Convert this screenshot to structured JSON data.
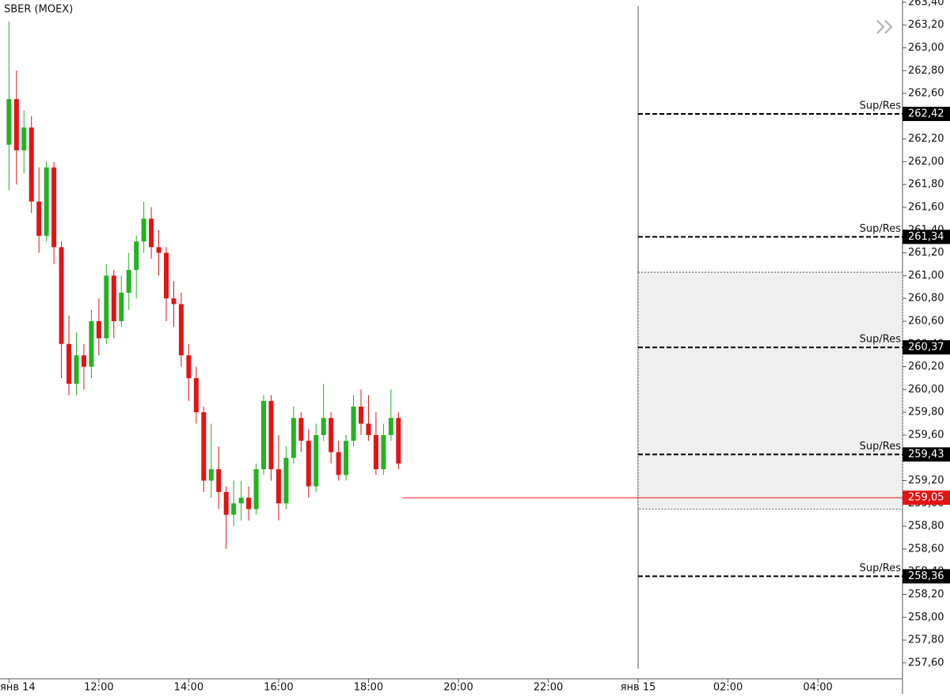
{
  "chart_data": {
    "type": "candlestick",
    "title": "SBER (MOEX)",
    "up_color": "#22b322",
    "down_color": "#e31414",
    "x": [
      600,
      610,
      620,
      630,
      640,
      650,
      660,
      670,
      680,
      690,
      700,
      710,
      720,
      730,
      740,
      750,
      760,
      770,
      780,
      790,
      800,
      810,
      820,
      830,
      840,
      850,
      860,
      870,
      880,
      890,
      900,
      910,
      920,
      930,
      940,
      950,
      960,
      970,
      980,
      990,
      1000,
      1010,
      1020,
      1030,
      1040,
      1050,
      1060,
      1070,
      1080,
      1090,
      1100,
      1110,
      1120
    ],
    "open": [
      262.15,
      262.55,
      262.1,
      262.3,
      261.65,
      261.35,
      261.95,
      261.25,
      260.4,
      260.05,
      260.3,
      260.2,
      260.6,
      260.45,
      261.0,
      260.6,
      260.85,
      261.05,
      261.3,
      261.5,
      261.25,
      261.2,
      260.8,
      260.75,
      260.3,
      260.1,
      259.8,
      259.2,
      259.3,
      259.1,
      258.9,
      259.0,
      259.05,
      258.95,
      259.3,
      259.9,
      259.3,
      259.0,
      259.4,
      259.75,
      259.55,
      259.15,
      259.6,
      259.75,
      259.45,
      259.25,
      259.55,
      259.85,
      259.7,
      259.6,
      259.3,
      259.6,
      259.75
    ],
    "high": [
      263.23,
      262.8,
      262.45,
      262.4,
      261.95,
      262.0,
      262.0,
      261.3,
      260.65,
      260.5,
      260.4,
      260.7,
      260.8,
      261.1,
      261.05,
      261.0,
      261.2,
      261.35,
      261.65,
      261.6,
      261.4,
      261.25,
      260.95,
      260.85,
      260.4,
      260.2,
      259.85,
      259.7,
      259.5,
      259.15,
      259.2,
      259.2,
      259.15,
      259.35,
      259.95,
      259.95,
      259.6,
      259.5,
      259.85,
      259.8,
      259.65,
      259.7,
      260.05,
      259.8,
      259.55,
      259.6,
      259.95,
      260.0,
      259.95,
      259.8,
      259.7,
      260.0,
      259.8
    ],
    "low": [
      261.75,
      261.8,
      261.9,
      261.55,
      261.2,
      261.3,
      261.1,
      260.1,
      259.95,
      259.95,
      260.0,
      260.1,
      260.3,
      260.4,
      260.45,
      260.55,
      260.7,
      260.8,
      261.2,
      261.15,
      261.0,
      260.6,
      260.55,
      260.2,
      259.9,
      259.7,
      259.1,
      259.05,
      258.95,
      258.6,
      258.8,
      258.85,
      258.85,
      258.9,
      259.25,
      259.2,
      258.85,
      258.95,
      259.35,
      259.45,
      259.05,
      259.1,
      259.55,
      259.35,
      259.2,
      259.2,
      259.5,
      259.6,
      259.55,
      259.25,
      259.25,
      259.55,
      259.3
    ],
    "close": [
      262.55,
      262.1,
      262.3,
      261.65,
      261.35,
      261.95,
      261.25,
      260.4,
      260.05,
      260.3,
      260.2,
      260.6,
      260.45,
      261.0,
      260.6,
      260.85,
      261.05,
      261.3,
      261.5,
      261.25,
      261.2,
      260.8,
      260.75,
      260.3,
      260.1,
      259.8,
      259.2,
      259.3,
      259.1,
      258.9,
      259.0,
      259.05,
      258.95,
      259.3,
      259.9,
      259.3,
      259.0,
      259.4,
      259.75,
      259.55,
      259.15,
      259.6,
      259.75,
      259.45,
      259.25,
      259.55,
      259.85,
      259.7,
      259.6,
      259.3,
      259.6,
      259.75,
      259.35
    ],
    "xlim": [
      588,
      1793
    ],
    "xticks": [
      {
        "value": 600,
        "label": "янв 14"
      },
      {
        "value": 720,
        "label": "12:00"
      },
      {
        "value": 840,
        "label": "14:00"
      },
      {
        "value": 960,
        "label": "16:00"
      },
      {
        "value": 1080,
        "label": "18:00"
      },
      {
        "value": 1200,
        "label": "20:00"
      },
      {
        "value": 1320,
        "label": "22:00"
      },
      {
        "value": 1440,
        "label": "янв 15"
      },
      {
        "value": 1560,
        "label": "02:00"
      },
      {
        "value": 1680,
        "label": "04:00"
      }
    ],
    "ylim": [
      257.46,
      263.42
    ],
    "yticks": [
      {
        "value": 257.6,
        "label": "257,60"
      },
      {
        "value": 257.8,
        "label": "257,80"
      },
      {
        "value": 258.0,
        "label": "258,00"
      },
      {
        "value": 258.2,
        "label": "258,20"
      },
      {
        "value": 258.4,
        "label": "258,40"
      },
      {
        "value": 258.6,
        "label": "258,60"
      },
      {
        "value": 258.8,
        "label": "258,80"
      },
      {
        "value": 259.0,
        "label": "259,00"
      },
      {
        "value": 259.2,
        "label": "259,20"
      },
      {
        "value": 259.4,
        "label": "259,40"
      },
      {
        "value": 259.6,
        "label": "259,60"
      },
      {
        "value": 259.8,
        "label": "259,80"
      },
      {
        "value": 260.0,
        "label": "260,00"
      },
      {
        "value": 260.2,
        "label": "260,20"
      },
      {
        "value": 260.4,
        "label": "260,40"
      },
      {
        "value": 260.6,
        "label": "260,60"
      },
      {
        "value": 260.8,
        "label": "260,80"
      },
      {
        "value": 261.0,
        "label": "261,00"
      },
      {
        "value": 261.2,
        "label": "261,20"
      },
      {
        "value": 261.4,
        "label": "261,40"
      },
      {
        "value": 261.6,
        "label": "261,60"
      },
      {
        "value": 261.8,
        "label": "261,80"
      },
      {
        "value": 262.0,
        "label": "262,00"
      },
      {
        "value": 262.2,
        "label": "262,20"
      },
      {
        "value": 262.4,
        "label": "262,40"
      },
      {
        "value": 262.6,
        "label": "262,60"
      },
      {
        "value": 262.8,
        "label": "262,80"
      },
      {
        "value": 263.0,
        "label": "263,00"
      },
      {
        "value": 263.2,
        "label": "263,20"
      },
      {
        "value": 263.4,
        "label": "263,40"
      }
    ],
    "zone": [
      258.95,
      261.03
    ],
    "levels": [
      {
        "name": "Sup/Res",
        "value": 262.42,
        "value_label": "262,42"
      },
      {
        "name": "Sup/Res",
        "value": 261.34,
        "value_label": "261,34"
      },
      {
        "name": "Sup/Res",
        "value": 260.37,
        "value_label": "260,37"
      },
      {
        "name": "Sup/Res",
        "value": 259.43,
        "value_label": "259,43"
      },
      {
        "name": "Sup/Res",
        "value": 258.36,
        "value_label": "258,36"
      }
    ],
    "current_price": {
      "value": 259.05,
      "label": "259,05",
      "color": "#e31414"
    }
  }
}
